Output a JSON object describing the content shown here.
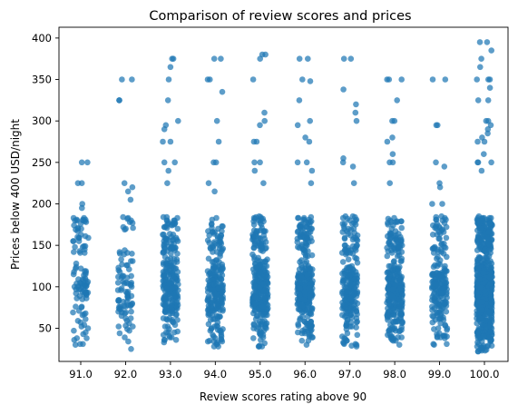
{
  "chart_data": {
    "type": "scatter",
    "subtype": "strip",
    "title": "Comparison of review scores and prices",
    "xlabel": "Review scores rating above 90",
    "ylabel": "Prices below 400 USD/night",
    "categories": [
      "91.0",
      "92.0",
      "93.0",
      "94.0",
      "95.0",
      "96.0",
      "97.0",
      "98.0",
      "99.0",
      "100.0"
    ],
    "ylim": [
      10,
      413
    ],
    "yticks": [
      50,
      100,
      150,
      200,
      250,
      300,
      350,
      400
    ],
    "grid": false,
    "color": "#1f77b4",
    "groups": [
      {
        "category": "91.0",
        "count": 110,
        "min": 30,
        "max": 250,
        "outliers": [
          250,
          225,
          225,
          200,
          195,
          180
        ]
      },
      {
        "category": "92.0",
        "count": 95,
        "min": 25,
        "max": 350,
        "outliers": [
          350,
          325,
          325,
          225,
          220,
          215,
          205
        ]
      },
      {
        "category": "93.0",
        "count": 260,
        "min": 33,
        "max": 375,
        "outliers": [
          375,
          365,
          350,
          325,
          300,
          295,
          290,
          275,
          275,
          250,
          250,
          240,
          225
        ]
      },
      {
        "category": "94.0",
        "count": 240,
        "min": 28,
        "max": 375,
        "outliers": [
          375,
          350,
          350,
          335,
          300,
          275,
          250,
          250,
          225,
          215
        ]
      },
      {
        "category": "95.0",
        "count": 300,
        "min": 28,
        "max": 380,
        "outliers": [
          380,
          375,
          350,
          310,
          300,
          295,
          275,
          275,
          250,
          250,
          240,
          225
        ]
      },
      {
        "category": "96.0",
        "count": 330,
        "min": 30,
        "max": 375,
        "outliers": [
          375,
          350,
          348,
          325,
          300,
          295,
          280,
          275,
          250,
          250,
          240,
          225
        ]
      },
      {
        "category": "97.0",
        "count": 230,
        "min": 28,
        "max": 375,
        "outliers": [
          375,
          338,
          320,
          310,
          300,
          255,
          250,
          245,
          225
        ]
      },
      {
        "category": "98.0",
        "count": 300,
        "min": 30,
        "max": 350,
        "outliers": [
          350,
          350,
          325,
          300,
          300,
          280,
          275,
          260,
          250,
          250,
          225
        ]
      },
      {
        "category": "99.0",
        "count": 210,
        "min": 30,
        "max": 350,
        "outliers": [
          350,
          295,
          295,
          250,
          245,
          225,
          220,
          200,
          200
        ]
      },
      {
        "category": "100.0",
        "count": 700,
        "min": 22,
        "max": 395,
        "outliers": [
          395,
          385,
          375,
          365,
          350,
          350,
          350,
          340,
          325,
          325,
          300,
          300,
          295,
          290,
          285,
          280,
          275,
          275,
          260,
          250,
          250,
          250,
          240
        ]
      }
    ]
  }
}
